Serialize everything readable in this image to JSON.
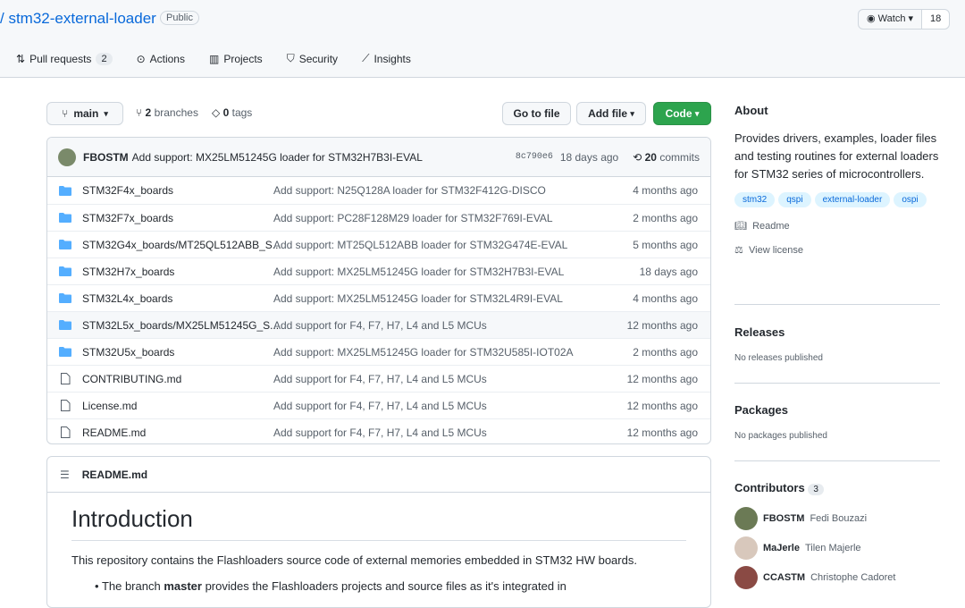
{
  "repo": {
    "name": "stm32-external-loader",
    "visibility": "Public",
    "watch_label": "Watch",
    "watch_count": "18"
  },
  "nav": [
    {
      "label": "Pull requests",
      "count": "2"
    },
    {
      "label": "Actions"
    },
    {
      "label": "Projects"
    },
    {
      "label": "Security"
    },
    {
      "label": "Insights"
    }
  ],
  "toolbar": {
    "branch": "main",
    "branches_count": "2",
    "branches_label": "branches",
    "tags_count": "0",
    "tags_label": "tags",
    "go_to_file": "Go to file",
    "add_file": "Add file",
    "code": "Code"
  },
  "commit": {
    "author": "FBOSTM",
    "message": "Add support: MX25LM51245G loader for STM32H7B3I-EVAL",
    "sha": "8c790e6",
    "age": "18 days ago",
    "count": "20",
    "count_label": "commits"
  },
  "files": [
    {
      "type": "dir",
      "name": "STM32F4x_boards",
      "message": "Add support: N25Q128A loader for STM32F412G-DISCO",
      "age": "4 months ago"
    },
    {
      "type": "dir",
      "name": "STM32F7x_boards",
      "message": "Add support: PC28F128M29 loader for STM32F769I-EVAL",
      "age": "2 months ago"
    },
    {
      "type": "dir",
      "name": "STM32G4x_boards/MT25QL512ABB_S...",
      "message": "Add support: MT25QL512ABB loader for STM32G474E-EVAL",
      "age": "5 months ago"
    },
    {
      "type": "dir",
      "name": "STM32H7x_boards",
      "message": "Add support: MX25LM51245G loader for STM32H7B3I-EVAL",
      "age": "18 days ago"
    },
    {
      "type": "dir",
      "name": "STM32L4x_boards",
      "message": "Add support: MX25LM51245G loader for STM32L4R9I-EVAL",
      "age": "4 months ago"
    },
    {
      "type": "dir",
      "name": "STM32L5x_boards/MX25LM51245G_S...",
      "message": "Add support for F4, F7, H7, L4 and L5 MCUs",
      "age": "12 months ago"
    },
    {
      "type": "dir",
      "name": "STM32U5x_boards",
      "message": "Add support: MX25LM51245G loader for STM32U585I-IOT02A",
      "age": "2 months ago"
    },
    {
      "type": "file",
      "name": "CONTRIBUTING.md",
      "message": "Add support for F4, F7, H7, L4 and L5 MCUs",
      "age": "12 months ago"
    },
    {
      "type": "file",
      "name": "License.md",
      "message": "Add support for F4, F7, H7, L4 and L5 MCUs",
      "age": "12 months ago"
    },
    {
      "type": "file",
      "name": "README.md",
      "message": "Add support for F4, F7, H7, L4 and L5 MCUs",
      "age": "12 months ago"
    }
  ],
  "readme": {
    "filename": "README.md",
    "title": "Introduction",
    "intro": "This repository contains the Flashloaders source code of external memories embedded in STM32 HW boards.",
    "bullet_pre": "The branch ",
    "bullet_bold": "master",
    "bullet_post": " provides the Flashloaders projects and source files as it's integrated in"
  },
  "about": {
    "title": "About",
    "description": "Provides drivers, examples, loader files and testing routines for external loaders for STM32 series of microcontrollers.",
    "topics": [
      "stm32",
      "qspi",
      "external-loader",
      "ospi"
    ],
    "readme_link": "Readme",
    "license_link": "View license"
  },
  "releases": {
    "title": "Releases",
    "text": "No releases published"
  },
  "packages": {
    "title": "Packages",
    "text": "No packages published"
  },
  "contributors": {
    "title": "Contributors",
    "count": "3",
    "list": [
      {
        "login": "FBOSTM",
        "name": "Fedi Bouzazi"
      },
      {
        "login": "MaJerle",
        "name": "Tilen Majerle"
      },
      {
        "login": "CCASTM",
        "name": "Christophe Cadoret"
      }
    ]
  },
  "colors": {
    "accent": "#0969da",
    "primary_button": "#2da44e",
    "folder": "#54aeff"
  }
}
